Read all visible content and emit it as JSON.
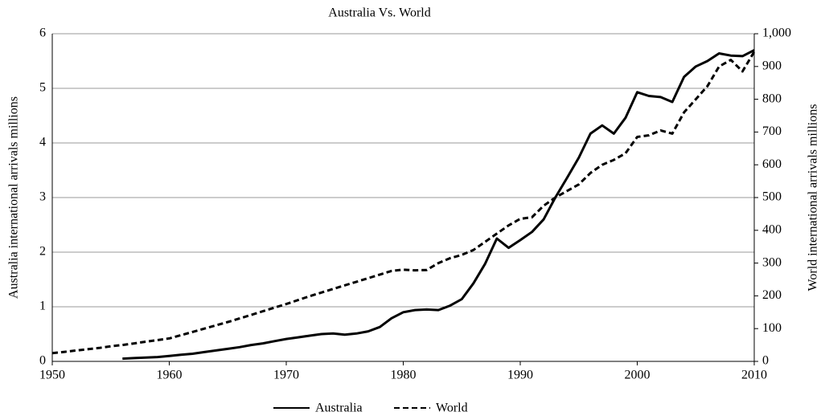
{
  "chart_data": {
    "type": "line",
    "title": "Australia Vs. World",
    "ylabel": "Australia international arrivals millions",
    "y2label": "World international arrivals millions",
    "x": [
      1950,
      1951,
      1952,
      1953,
      1954,
      1955,
      1956,
      1957,
      1958,
      1959,
      1960,
      1961,
      1962,
      1963,
      1964,
      1965,
      1966,
      1967,
      1968,
      1969,
      1970,
      1971,
      1972,
      1973,
      1974,
      1975,
      1976,
      1977,
      1978,
      1979,
      1980,
      1981,
      1982,
      1983,
      1984,
      1985,
      1986,
      1987,
      1988,
      1989,
      1990,
      1991,
      1992,
      1993,
      1994,
      1995,
      1996,
      1997,
      1998,
      1999,
      2000,
      2001,
      2002,
      2003,
      2004,
      2005,
      2006,
      2007,
      2008,
      2009,
      2010
    ],
    "series": [
      {
        "name": "Australia",
        "color": "#000000",
        "line_style": "solid",
        "values": [
          null,
          null,
          null,
          null,
          null,
          null,
          0.05,
          0.06,
          0.07,
          0.08,
          0.1,
          0.12,
          0.14,
          0.17,
          0.2,
          0.23,
          0.26,
          0.3,
          0.33,
          0.37,
          0.41,
          0.44,
          0.47,
          0.5,
          0.51,
          0.49,
          0.51,
          0.55,
          0.63,
          0.79,
          0.9,
          0.94,
          0.95,
          0.94,
          1.02,
          1.14,
          1.43,
          1.79,
          2.25,
          2.08,
          2.22,
          2.37,
          2.6,
          3.0,
          3.36,
          3.73,
          4.17,
          4.32,
          4.17,
          4.46,
          4.93,
          4.86,
          4.84,
          4.75,
          5.21,
          5.4,
          5.5,
          5.64,
          5.6,
          5.59,
          5.7
        ]
      },
      {
        "name": "World",
        "color": "#000000",
        "line_style": "dashed",
        "axis": "y2",
        "values": [
          25,
          29,
          33,
          37,
          41,
          46,
          50,
          55,
          60,
          65,
          70,
          80,
          90,
          100,
          110,
          120,
          131,
          142,
          153,
          164,
          175,
          187,
          199,
          210,
          221,
          232,
          243,
          254,
          265,
          276,
          280,
          278,
          279,
          300,
          315,
          325,
          340,
          365,
          390,
          415,
          435,
          440,
          475,
          500,
          520,
          540,
          575,
          600,
          615,
          635,
          685,
          690,
          705,
          695,
          760,
          800,
          840,
          900,
          920,
          885,
          945
        ]
      }
    ],
    "xlim": [
      1950,
      2010
    ],
    "xticks": [
      1950,
      1960,
      1970,
      1980,
      1990,
      2000,
      2010
    ],
    "ylim": [
      0,
      6
    ],
    "yticks": [
      0,
      1,
      2,
      3,
      4,
      5,
      6
    ],
    "y2lim": [
      0,
      1000
    ],
    "y2ticks": [
      0,
      100,
      200,
      300,
      400,
      500,
      600,
      700,
      800,
      900,
      {
        "value": 1000,
        "label": "1,000"
      }
    ],
    "grid": true,
    "legend": "bottom"
  }
}
